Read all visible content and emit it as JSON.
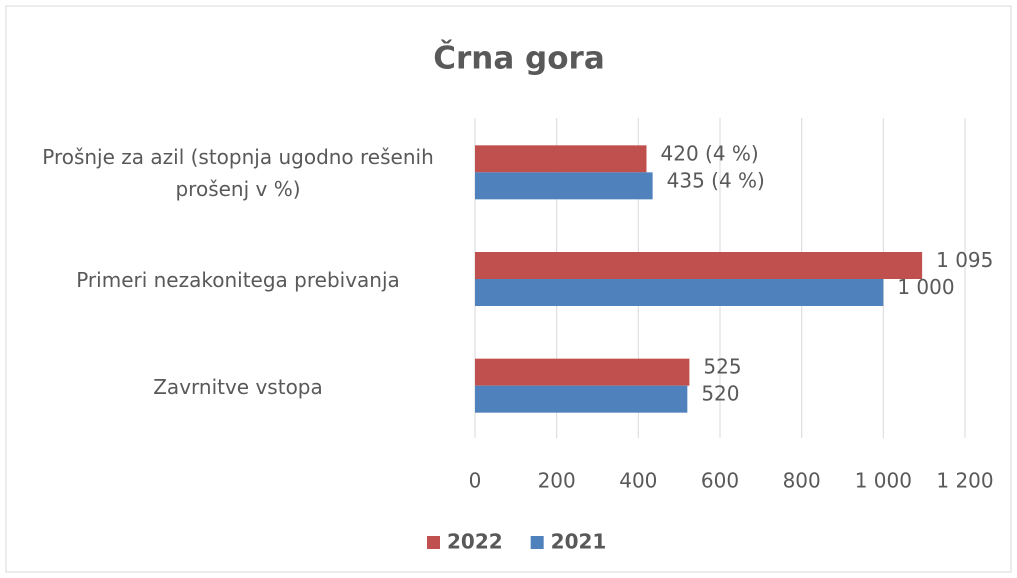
{
  "chart_data": {
    "type": "bar",
    "orientation": "horizontal",
    "title": "Črna gora",
    "categories": [
      "Prošnje za azil (stopnja ugodno rešenih prošenj v %)",
      "Primeri nezakonitega prebivanja",
      "Zavrnitve vstopa"
    ],
    "series": [
      {
        "name": "2022",
        "color": "#c0504d",
        "values": [
          420,
          1095,
          525
        ],
        "value_labels": [
          "420 (4 %)",
          "1 095",
          "525"
        ]
      },
      {
        "name": "2021",
        "color": "#4f81bd",
        "values": [
          435,
          1000,
          520
        ],
        "value_labels": [
          "435 (4 %)",
          "1 000",
          "520"
        ]
      }
    ],
    "xlim": [
      0,
      1200
    ],
    "xticks": [
      0,
      200,
      400,
      600,
      800,
      {
        "value": 1000,
        "label": "1 000"
      },
      {
        "value": 1200,
        "label": "1 200"
      }
    ],
    "grid": true,
    "legend": "bottom"
  }
}
